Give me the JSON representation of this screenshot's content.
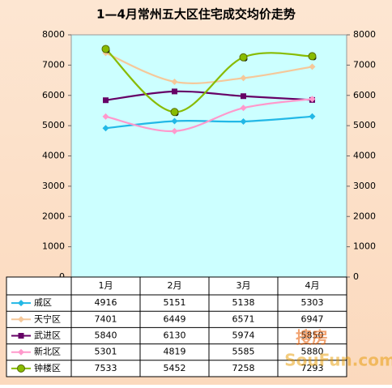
{
  "chart_data": {
    "type": "line",
    "title": "1—4月常州五大区住宅成交均价走势",
    "categories": [
      "1月",
      "2月",
      "3月",
      "4月"
    ],
    "series": [
      {
        "name": "戚区",
        "color": "#22b8e6",
        "values": [
          4916,
          5151,
          5138,
          5303
        ]
      },
      {
        "name": "天宁区",
        "color": "#f5c89a",
        "values": [
          7401,
          6449,
          6571,
          6947
        ]
      },
      {
        "name": "武进区",
        "color": "#660066",
        "values": [
          5840,
          6130,
          5974,
          5850
        ]
      },
      {
        "name": "新北区",
        "color": "#ff99cc",
        "values": [
          5301,
          4819,
          5585,
          5880
        ]
      },
      {
        "name": "钟楼区",
        "color": "#88bb00",
        "values": [
          7533,
          5452,
          7258,
          7293
        ]
      }
    ],
    "ylim": [
      0,
      8000
    ],
    "yticks": [
      0,
      1000,
      2000,
      3000,
      4000,
      5000,
      6000,
      7000,
      8000
    ],
    "y2lim": [
      0,
      8000
    ],
    "y2ticks": [
      0,
      1000,
      2000,
      3000,
      4000,
      5000,
      6000,
      7000,
      8000
    ],
    "smooth": true,
    "watermark": [
      "搜房",
      "SouFun.com"
    ]
  }
}
